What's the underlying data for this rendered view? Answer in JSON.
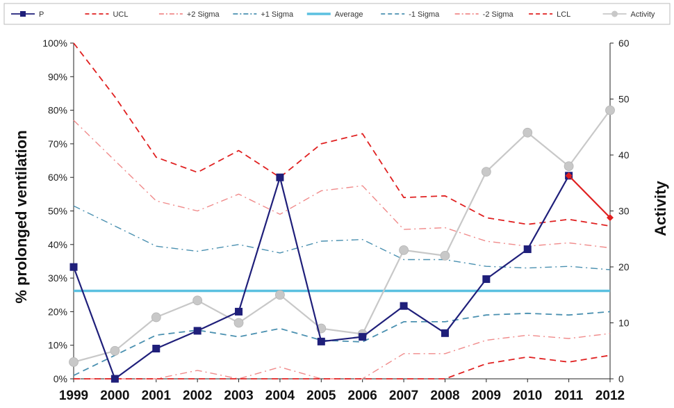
{
  "chart_data": {
    "type": "line",
    "x": [
      "1999",
      "2000",
      "2001",
      "2002",
      "2003",
      "2004",
      "2005",
      "2006",
      "2007",
      "2008",
      "2009",
      "2010",
      "2011",
      "2012"
    ],
    "ylabel": "% prolonged ventilation",
    "y2label": "Activity",
    "ylim": [
      0,
      100
    ],
    "y2lim": [
      0,
      60
    ],
    "yticks": [
      "0%",
      "10%",
      "20%",
      "30%",
      "40%",
      "50%",
      "60%",
      "70%",
      "80%",
      "90%",
      "100%"
    ],
    "y2ticks": [
      "0",
      "10",
      "20",
      "30",
      "40",
      "50",
      "60"
    ],
    "legend_position": "top",
    "grid": false,
    "series": [
      {
        "name": "P",
        "axis": "left",
        "color": "#1f1f7a",
        "style": "solid-square",
        "values": [
          33.3,
          0,
          9,
          14.3,
          20,
          60,
          11.1,
          12.5,
          21.7,
          13.6,
          29.7,
          38.6,
          60.5,
          null
        ]
      },
      {
        "name": "UCL",
        "axis": "left",
        "color": "#e02020",
        "style": "dash",
        "values": [
          100,
          84,
          66,
          61.5,
          68,
          60,
          70,
          73,
          54,
          54.5,
          48,
          46,
          47.5,
          45.5
        ]
      },
      {
        "name": "+2 Sigma",
        "axis": "left",
        "color": "#f08a8a",
        "style": "dashdot",
        "values": [
          77,
          65,
          53,
          50,
          55,
          49,
          56,
          57.5,
          44.5,
          45,
          41,
          39.5,
          40.5,
          39
        ]
      },
      {
        "name": "+1 Sigma",
        "axis": "left",
        "color": "#4a90b0",
        "style": "dashdot",
        "values": [
          51.5,
          45.5,
          39.5,
          38,
          40,
          37.5,
          41,
          41.5,
          35.5,
          35.5,
          33.5,
          33,
          33.5,
          32.5
        ]
      },
      {
        "name": "Average",
        "axis": "left",
        "color": "#5bc0e0",
        "style": "thick",
        "values": [
          26.2,
          26.2,
          26.2,
          26.2,
          26.2,
          26.2,
          26.2,
          26.2,
          26.2,
          26.2,
          26.2,
          26.2,
          26.2,
          26.2
        ]
      },
      {
        "name": "-1 Sigma",
        "axis": "left",
        "color": "#4a90b0",
        "style": "dash",
        "values": [
          1,
          7,
          13,
          14.5,
          12.5,
          15,
          11.5,
          11,
          17,
          17,
          19,
          19.5,
          19,
          20
        ]
      },
      {
        "name": "-2 Sigma",
        "axis": "left",
        "color": "#f08a8a",
        "style": "dashdot",
        "values": [
          0,
          0,
          0,
          2.5,
          0,
          3.5,
          0,
          0,
          7.5,
          7.5,
          11.5,
          13,
          12,
          13.5
        ]
      },
      {
        "name": "LCL",
        "axis": "left",
        "color": "#e02020",
        "style": "dash",
        "values": [
          0,
          0,
          0,
          0,
          0,
          0,
          0,
          0,
          0,
          0,
          4.5,
          6.5,
          5,
          7
        ]
      },
      {
        "name": "Activity",
        "axis": "right",
        "color": "#c8c8c8",
        "style": "solid-circle",
        "values": [
          3,
          5,
          11,
          14,
          10,
          15,
          9,
          8,
          23,
          22,
          37,
          44,
          38,
          48
        ]
      }
    ],
    "annotations": [
      {
        "type": "highlight-segment",
        "series": "P",
        "from": "2011",
        "to": "2012",
        "values": [
          60.5,
          48
        ],
        "color": "#e02020"
      }
    ]
  }
}
